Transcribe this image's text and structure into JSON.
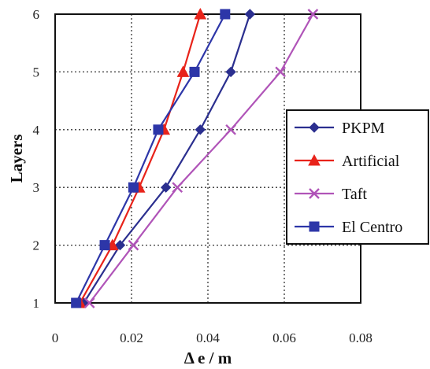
{
  "chart_data": {
    "type": "line",
    "xlabel": "Δ e / m",
    "ylabel": "Layers",
    "xlim": [
      0,
      0.08
    ],
    "ylim": [
      1,
      6
    ],
    "x_ticks": [
      "0",
      "0.02",
      "0.04",
      "0.06",
      "0.08"
    ],
    "y_ticks": [
      "1",
      "2",
      "3",
      "4",
      "5",
      "6"
    ],
    "grid": true,
    "legend_position": "right",
    "series": [
      {
        "name": "PKPM",
        "color": "#2b2f8f",
        "marker": "diamond",
        "points": [
          {
            "x": 0.0075,
            "y": 1
          },
          {
            "x": 0.017,
            "y": 2
          },
          {
            "x": 0.029,
            "y": 3
          },
          {
            "x": 0.038,
            "y": 4
          },
          {
            "x": 0.046,
            "y": 5
          },
          {
            "x": 0.051,
            "y": 6
          }
        ]
      },
      {
        "name": "Artificial",
        "color": "#e8231a",
        "marker": "triangle",
        "points": [
          {
            "x": 0.0065,
            "y": 1
          },
          {
            "x": 0.015,
            "y": 2
          },
          {
            "x": 0.022,
            "y": 3
          },
          {
            "x": 0.0285,
            "y": 4
          },
          {
            "x": 0.0335,
            "y": 5
          },
          {
            "x": 0.038,
            "y": 6
          }
        ]
      },
      {
        "name": "Taft",
        "color": "#b054b8",
        "marker": "x",
        "points": [
          {
            "x": 0.009,
            "y": 1
          },
          {
            "x": 0.0205,
            "y": 2
          },
          {
            "x": 0.032,
            "y": 3
          },
          {
            "x": 0.046,
            "y": 4
          },
          {
            "x": 0.059,
            "y": 5
          },
          {
            "x": 0.0675,
            "y": 6
          }
        ]
      },
      {
        "name": "El Centro",
        "color": "#2d36a8",
        "marker": "square",
        "points": [
          {
            "x": 0.0055,
            "y": 1
          },
          {
            "x": 0.013,
            "y": 2
          },
          {
            "x": 0.0205,
            "y": 3
          },
          {
            "x": 0.027,
            "y": 4
          },
          {
            "x": 0.0365,
            "y": 5
          },
          {
            "x": 0.0445,
            "y": 6
          }
        ]
      }
    ]
  }
}
